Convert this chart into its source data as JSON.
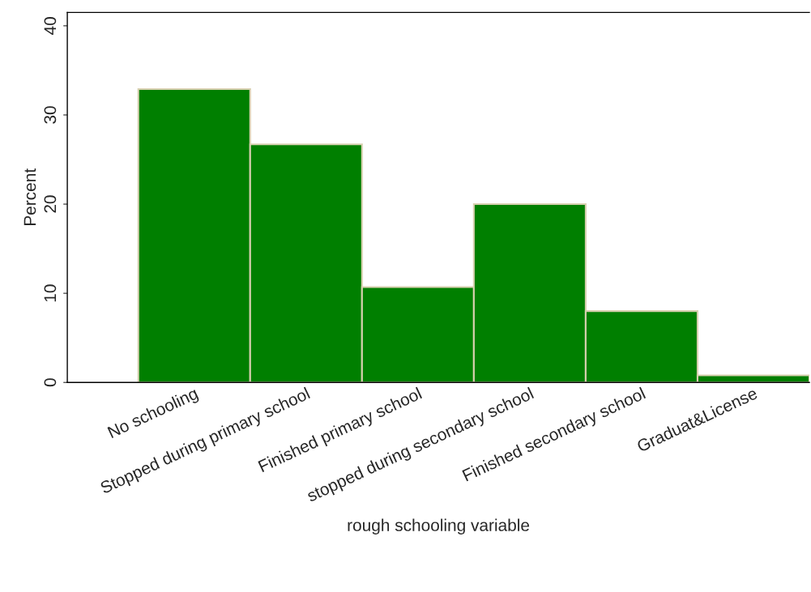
{
  "chart_data": {
    "type": "bar",
    "xlabel": "rough schooling variable",
    "ylabel": "Percent",
    "categories": [
      "No schooling",
      "Stopped during primary school",
      "Finished primary school",
      "stopped during secondary school",
      "Finished secondary school",
      "Graduat&License"
    ],
    "values": [
      32.9,
      26.7,
      10.7,
      20.0,
      8.0,
      0.8
    ],
    "color": "#007f00",
    "ylim": [
      0,
      41.5
    ],
    "yticks": [
      0,
      10,
      20,
      30,
      40
    ],
    "grid": false
  }
}
